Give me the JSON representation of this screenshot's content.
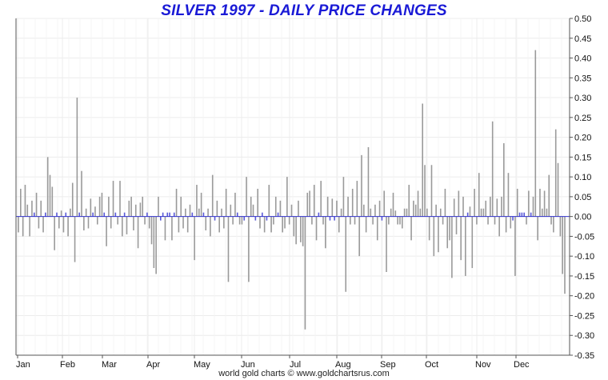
{
  "title": "SILVER 1997 - DAILY PRICE CHANGES",
  "footer": "world gold charts © www.goldchartsrus.com",
  "colors": {
    "title": "#1a1ad6",
    "up_bar": "#9a9a9a",
    "down_bar": "#9a9a9a",
    "small_bar": "#5a5ad6",
    "grid": "#ececec",
    "zero_line": "#3333cc"
  },
  "chart_data": {
    "type": "bar",
    "title": "SILVER 1997 - DAILY PRICE CHANGES",
    "xlabel": "",
    "ylabel": "",
    "ylim": [
      -0.35,
      0.5
    ],
    "y_ticks": [
      "0.50",
      "0.45",
      "0.40",
      "0.35",
      "0.30",
      "0.25",
      "0.20",
      "0.15",
      "0.10",
      "0.05",
      "0.00",
      "-0.05",
      "-0.10",
      "-0.15",
      "-0.20",
      "-0.25",
      "-0.30",
      "-0.35"
    ],
    "x_ticks": [
      "Jan",
      "Feb",
      "Mar",
      "Apr",
      "May",
      "Jun",
      "Jul",
      "Aug",
      "Sep",
      "Oct",
      "Nov",
      "Dec"
    ],
    "grid": true,
    "values": [
      -0.04,
      0.07,
      -0.05,
      0.08,
      0.03,
      -0.05,
      0.04,
      0.01,
      0.06,
      -0.03,
      0.04,
      -0.04,
      0.01,
      0.15,
      0.105,
      0.075,
      -0.085,
      0.01,
      -0.03,
      0.015,
      -0.04,
      0.01,
      -0.05,
      0.02,
      0.085,
      -0.115,
      0.3,
      0.01,
      0.115,
      -0.035,
      0.02,
      -0.03,
      0.045,
      0.01,
      0.025,
      -0.02,
      0.05,
      0.06,
      0.01,
      -0.075,
      0.05,
      -0.03,
      0.09,
      0.01,
      -0.02,
      0.09,
      -0.05,
      0.01,
      -0.045,
      0.04,
      0.05,
      -0.035,
      0.03,
      -0.08,
      0.035,
      0.05,
      -0.02,
      0.01,
      -0.03,
      -0.07,
      -0.13,
      -0.145,
      0.05,
      -0.01,
      0.01,
      -0.06,
      0.01,
      0.01,
      -0.06,
      0.01,
      0.07,
      -0.04,
      0.05,
      -0.03,
      0.02,
      -0.04,
      0.03,
      0.01,
      -0.11,
      0.08,
      0.02,
      0.06,
      0.01,
      -0.035,
      0.02,
      -0.05,
      0.105,
      -0.01,
      0.04,
      -0.04,
      0.02,
      -0.03,
      0.07,
      -0.165,
      0.03,
      -0.02,
      0.06,
      0.01,
      -0.02,
      -0.02,
      -0.01,
      0.1,
      -0.165,
      0.05,
      0.03,
      -0.01,
      0.07,
      -0.03,
      0.01,
      -0.04,
      -0.01,
      0.08,
      -0.04,
      -0.02,
      0.05,
      0.01,
      0.04,
      -0.04,
      -0.03,
      0.1,
      -0.02,
      0.03,
      -0.05,
      -0.07,
      0.04,
      -0.065,
      -0.075,
      -0.285,
      0.06,
      0.065,
      -0.02,
      0.08,
      -0.06,
      0.01,
      0.09,
      -0.02,
      -0.08,
      0.05,
      -0.01,
      0.045,
      -0.01,
      0.04,
      -0.04,
      0.02,
      0.1,
      -0.19,
      0.05,
      -0.02,
      0.07,
      -0.02,
      0.09,
      -0.1,
      0.155,
      0.03,
      -0.04,
      0.175,
      0.02,
      -0.02,
      0.03,
      -0.06,
      0.04,
      -0.01,
      0.065,
      -0.14,
      -0.02,
      0.02,
      0.06,
      0.015,
      -0.02,
      -0.02,
      -0.03,
      0.02,
      0.02,
      0.08,
      -0.06,
      0.04,
      0.03,
      0.065,
      0.02,
      0.285,
      0.13,
      0.02,
      -0.06,
      0.13,
      -0.1,
      0.03,
      -0.09,
      0.02,
      -0.02,
      0.07,
      -0.08,
      -0.06,
      -0.155,
      0.045,
      -0.045,
      0.065,
      -0.11,
      0.05,
      -0.15,
      0.01,
      0.025,
      -0.13,
      0.07,
      -0.02,
      0.11,
      0.02,
      0.02,
      0.04,
      -0.02,
      0.05,
      0.24,
      -0.02,
      0.045,
      -0.05,
      0.05,
      0.185,
      -0.04,
      0.11,
      -0.03,
      -0.01,
      -0.15,
      0.07,
      0.01,
      0.01,
      0.01,
      -0.02,
      0.065,
      0.01,
      0.05,
      0.42,
      -0.06,
      0.07,
      0.02,
      0.065,
      0.02,
      0.105,
      -0.02,
      -0.04,
      0.22,
      0.135,
      -0.05,
      -0.145,
      -0.195
    ]
  }
}
